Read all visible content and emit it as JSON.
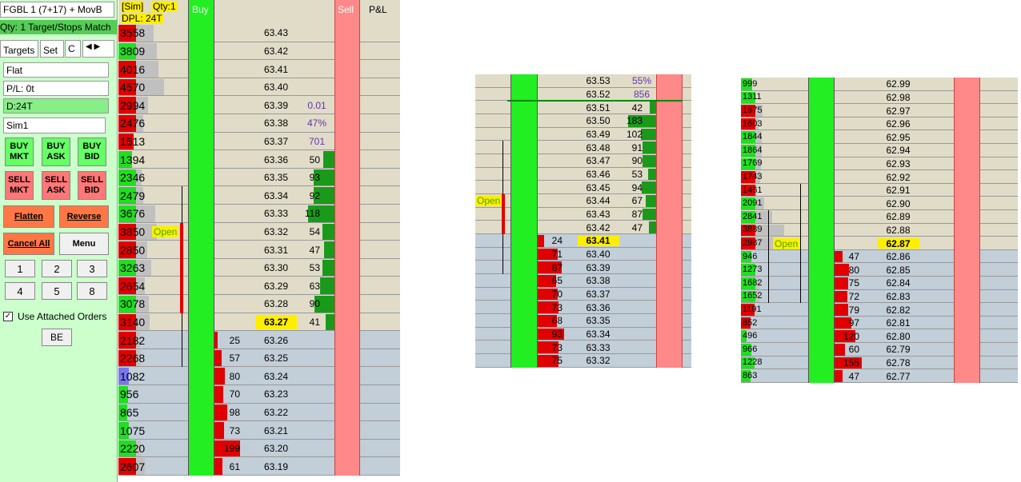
{
  "left_panel": {
    "instrument": "FGBL 1 (7+17) + MovB",
    "status": "Qty: 1 Target/Stops Match",
    "tabs": [
      "Targets",
      "Set",
      "C"
    ],
    "position": "Flat",
    "pnl": "P/L: 0t",
    "dpl": "D:24T",
    "account": "Sim1",
    "buy_buttons": [
      "BUY MKT",
      "BUY ASK",
      "BUY BID"
    ],
    "sell_buttons": [
      "SELL MKT",
      "SELL ASK",
      "SELL BID"
    ],
    "flatten": "Flatten",
    "reverse": "Reverse",
    "cancel_all": "Cancel All",
    "menu": "Menu",
    "qty_buttons": [
      "1",
      "2",
      "3",
      "4",
      "5",
      "8"
    ],
    "attached_orders": "Use Attached Orders",
    "be": "BE"
  },
  "header": {
    "sim": "[Sim]",
    "qty": "Qty:1",
    "dpl": "DPL: 24T",
    "buy": "Buy",
    "sell": "Sell",
    "pnl": "P&L"
  },
  "ladders": [
    {
      "rows": [
        {
          "price": "63.43",
          "volume": 3558,
          "vol_color": "#e00000"
        },
        {
          "price": "63.42",
          "volume": 3809,
          "vol_color": "#22dd22"
        },
        {
          "price": "63.41",
          "volume": 4016,
          "vol_color": "#e00000"
        },
        {
          "price": "63.40",
          "volume": 4570,
          "vol_color": "#e00000"
        },
        {
          "price": "63.39",
          "volume": 2994,
          "vol_color": "#e00000",
          "stat": "0.01"
        },
        {
          "price": "63.38",
          "volume": 2476,
          "vol_color": "#e00000",
          "stat": "47%"
        },
        {
          "price": "63.37",
          "volume": 1513,
          "vol_color": "#e00000",
          "stat": "701"
        },
        {
          "price": "63.36",
          "volume": 1394,
          "vol_color": "#22dd22",
          "ask": 50
        },
        {
          "price": "63.35",
          "volume": 2346,
          "vol_color": "#22dd22",
          "ask": 93
        },
        {
          "price": "63.34",
          "volume": 2479,
          "vol_color": "#22dd22",
          "ask": 92
        },
        {
          "price": "63.33",
          "volume": 3676,
          "vol_color": "#22dd22",
          "ask": 118
        },
        {
          "price": "63.32",
          "volume": 3850,
          "vol_color": "#e00000",
          "ask": 54,
          "marker": "Open"
        },
        {
          "price": "63.31",
          "volume": 2850,
          "vol_color": "#e00000",
          "ask": 47
        },
        {
          "price": "63.30",
          "volume": 3263,
          "vol_color": "#22dd22",
          "ask": 53
        },
        {
          "price": "63.29",
          "volume": 2654,
          "vol_color": "#e00000",
          "ask": 63
        },
        {
          "price": "63.28",
          "volume": 3078,
          "vol_color": "#22dd22",
          "ask": 90
        },
        {
          "price": "63.27",
          "volume": 3140,
          "vol_color": "#e00000",
          "ask": 41,
          "highlight": true
        },
        {
          "price": "63.26",
          "volume": 2182,
          "vol_color": "#e00000",
          "bid": 25
        },
        {
          "price": "63.25",
          "volume": 2268,
          "vol_color": "#e00000",
          "bid": 57
        },
        {
          "price": "63.24",
          "volume": 1082,
          "vol_color": "#7777ee",
          "bid": 80
        },
        {
          "price": "63.23",
          "volume": 956,
          "vol_color": "#22dd22",
          "bid": 70
        },
        {
          "price": "63.22",
          "volume": 865,
          "vol_color": "#22dd22",
          "bid": 98
        },
        {
          "price": "63.21",
          "volume": 1075,
          "vol_color": "#22dd22",
          "bid": 73
        },
        {
          "price": "63.20",
          "volume": 2220,
          "vol_color": "#22dd22",
          "bid": 199
        },
        {
          "price": "63.19",
          "volume": 2607,
          "vol_color": "#e00000",
          "bid": 61
        }
      ]
    },
    {
      "rows": [
        {
          "price": "63.53",
          "stat": "55%"
        },
        {
          "price": "63.52",
          "stat": "856"
        },
        {
          "price": "63.51",
          "ask": 42
        },
        {
          "price": "63.50",
          "ask": 183
        },
        {
          "price": "63.49",
          "ask": 102
        },
        {
          "price": "63.48",
          "ask": 91
        },
        {
          "price": "63.47",
          "ask": 90
        },
        {
          "price": "63.46",
          "ask": 53
        },
        {
          "price": "63.45",
          "ask": 94
        },
        {
          "price": "63.44",
          "ask": 67,
          "marker": "Open"
        },
        {
          "price": "63.43",
          "ask": 87
        },
        {
          "price": "63.42",
          "ask": 47
        },
        {
          "price": "63.41",
          "bid": 24,
          "highlight": true
        },
        {
          "price": "63.40",
          "bid": 71
        },
        {
          "price": "63.39",
          "bid": 87
        },
        {
          "price": "63.38",
          "bid": 65
        },
        {
          "price": "63.37",
          "bid": 70
        },
        {
          "price": "63.36",
          "bid": 73
        },
        {
          "price": "63.35",
          "bid": 68
        },
        {
          "price": "63.34",
          "bid": 93
        },
        {
          "price": "63.33",
          "bid": 73
        },
        {
          "price": "63.32",
          "bid": 75
        }
      ]
    },
    {
      "rows": [
        {
          "price": "62.99",
          "volume": 999,
          "vol_color": "#22dd22"
        },
        {
          "price": "62.98",
          "volume": 1311,
          "vol_color": "#22dd22"
        },
        {
          "price": "62.97",
          "volume": 1975,
          "vol_color": "#e00000"
        },
        {
          "price": "62.96",
          "volume": 1603,
          "vol_color": "#e00000"
        },
        {
          "price": "62.95",
          "volume": 1844,
          "vol_color": "#22dd22"
        },
        {
          "price": "62.94",
          "volume": 1864,
          "vol_color": "#22dd22"
        },
        {
          "price": "62.93",
          "volume": 1769,
          "vol_color": "#22dd22"
        },
        {
          "price": "62.92",
          "volume": 1743,
          "vol_color": "#e00000"
        },
        {
          "price": "62.91",
          "volume": 1461,
          "vol_color": "#e00000"
        },
        {
          "price": "62.90",
          "volume": 2091,
          "vol_color": "#22dd22"
        },
        {
          "price": "62.89",
          "volume": 2841,
          "vol_color": "#22dd22"
        },
        {
          "price": "62.88",
          "volume": 3889,
          "vol_color": "#e00000"
        },
        {
          "price": "62.87",
          "volume": 2987,
          "vol_color": "#e00000",
          "marker": "Open",
          "highlight": true
        },
        {
          "price": "62.86",
          "volume": 946,
          "vol_color": "#22dd22",
          "bid": 47
        },
        {
          "price": "62.85",
          "volume": 1273,
          "vol_color": "#22dd22",
          "bid": 80
        },
        {
          "price": "62.84",
          "volume": 1682,
          "vol_color": "#22dd22",
          "bid": 75
        },
        {
          "price": "62.83",
          "volume": 1652,
          "vol_color": "#22dd22",
          "bid": 72
        },
        {
          "price": "62.82",
          "volume": 1191,
          "vol_color": "#e00000",
          "bid": 79
        },
        {
          "price": "62.81",
          "volume": 852,
          "vol_color": "#e00000",
          "bid": 97
        },
        {
          "price": "62.80",
          "volume": 496,
          "vol_color": "#22dd22",
          "bid": 120
        },
        {
          "price": "62.79",
          "volume": 966,
          "vol_color": "#22dd22",
          "bid": 60
        },
        {
          "price": "62.78",
          "volume": 1228,
          "vol_color": "#22dd22",
          "bid": 155
        },
        {
          "price": "62.77",
          "volume": 863,
          "vol_color": "#22dd22",
          "bid": 47
        }
      ]
    }
  ]
}
